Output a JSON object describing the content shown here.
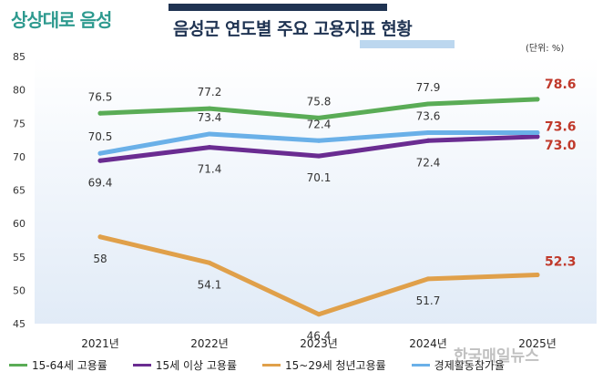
{
  "header": {
    "logo_text": "상상대로 음성",
    "title": "음성군 연도별 주요 고용지표 현황",
    "unit": "(단위: %)"
  },
  "watermark": "한국매일뉴스",
  "chart_data": {
    "type": "line",
    "title": "음성군 연도별 주요 고용지표 현황",
    "xlabel": "",
    "ylabel": "",
    "categories": [
      "2021년",
      "2022년",
      "2023년",
      "2024년",
      "2025년"
    ],
    "ylim": [
      45,
      85
    ],
    "yticks": [
      45,
      50,
      55,
      60,
      65,
      70,
      75,
      80,
      85
    ],
    "grid": false,
    "legend_position": "bottom",
    "series": [
      {
        "name": "15-64세 고용률",
        "color": "#5aac56",
        "values": [
          76.5,
          77.2,
          75.8,
          77.9,
          78.6
        ],
        "labels": [
          "76.5",
          "77.2",
          "75.8",
          "77.9",
          "78.6"
        ],
        "label_side": "above",
        "highlight_color": "#c0392b"
      },
      {
        "name": "15세 이상 고용률",
        "color": "#6a2c91",
        "values": [
          69.4,
          71.4,
          70.1,
          72.4,
          73.0
        ],
        "labels": [
          "69.4",
          "71.4",
          "70.1",
          "72.4",
          "73.0"
        ],
        "label_side": "below",
        "highlight_color": "#c0392b"
      },
      {
        "name": "15~29세 청년고용률",
        "color": "#e0a04a",
        "values": [
          58,
          54.1,
          46.4,
          51.7,
          52.3
        ],
        "labels": [
          "58",
          "54.1",
          "46.4",
          "51.7",
          "52.3"
        ],
        "label_side": "below",
        "highlight_color": "#c0392b"
      },
      {
        "name": "경제활동참가율",
        "color": "#6ab0e8",
        "values": [
          70.5,
          73.4,
          72.4,
          73.6,
          73.6
        ],
        "labels": [
          "70.5",
          "73.4",
          "72.4",
          "73.6",
          "73.6"
        ],
        "label_side": "above",
        "highlight_color": "#c0392b"
      }
    ]
  }
}
